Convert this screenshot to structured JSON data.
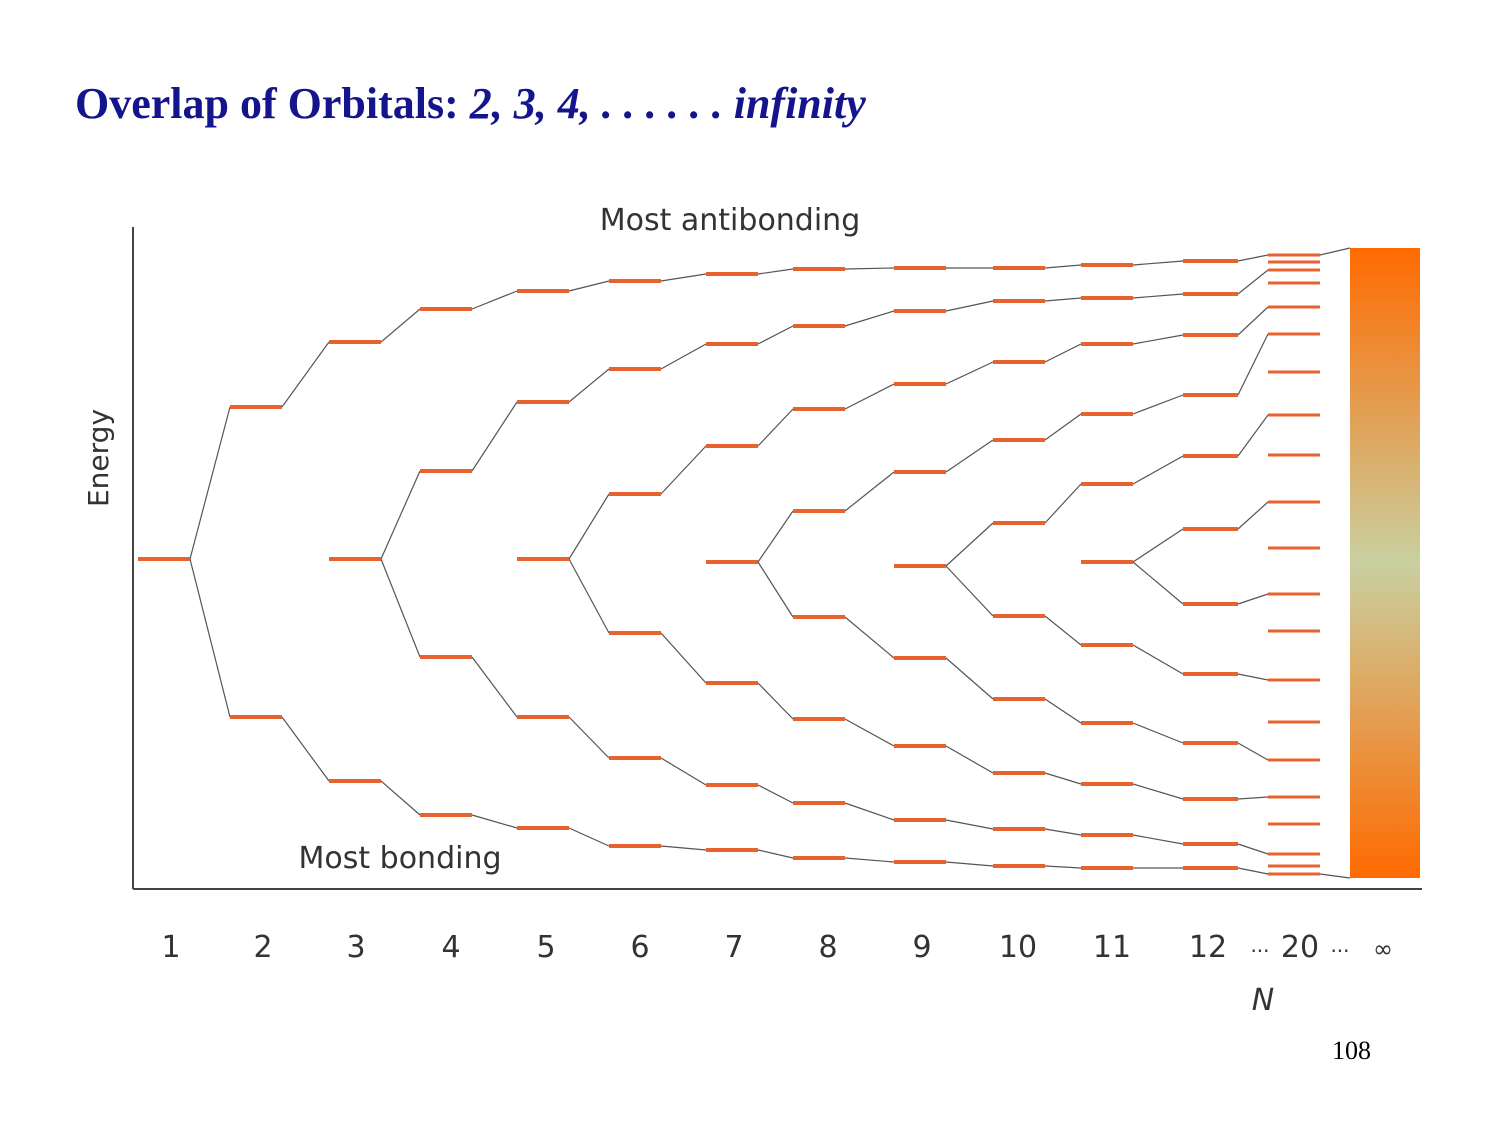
{
  "slide": {
    "title_main": "Overlap of Orbitals:",
    "title_italic": "2, 3, 4, . . . . . . infinity",
    "page_number": "108"
  },
  "diagram": {
    "top_label": "Most antibonding",
    "bottom_label": "Most bonding",
    "y_axis_label": "Energy",
    "x_axis_label": "N",
    "x_ticks": [
      "1",
      "2",
      "3",
      "4",
      "5",
      "6",
      "7",
      "8",
      "9",
      "10",
      "11",
      "12",
      "...",
      "20",
      "...",
      "∞"
    ],
    "level_color": "#e8622e",
    "band_colors": {
      "edge": "#ff6a00",
      "mid": "#c9d0a0"
    }
  }
}
